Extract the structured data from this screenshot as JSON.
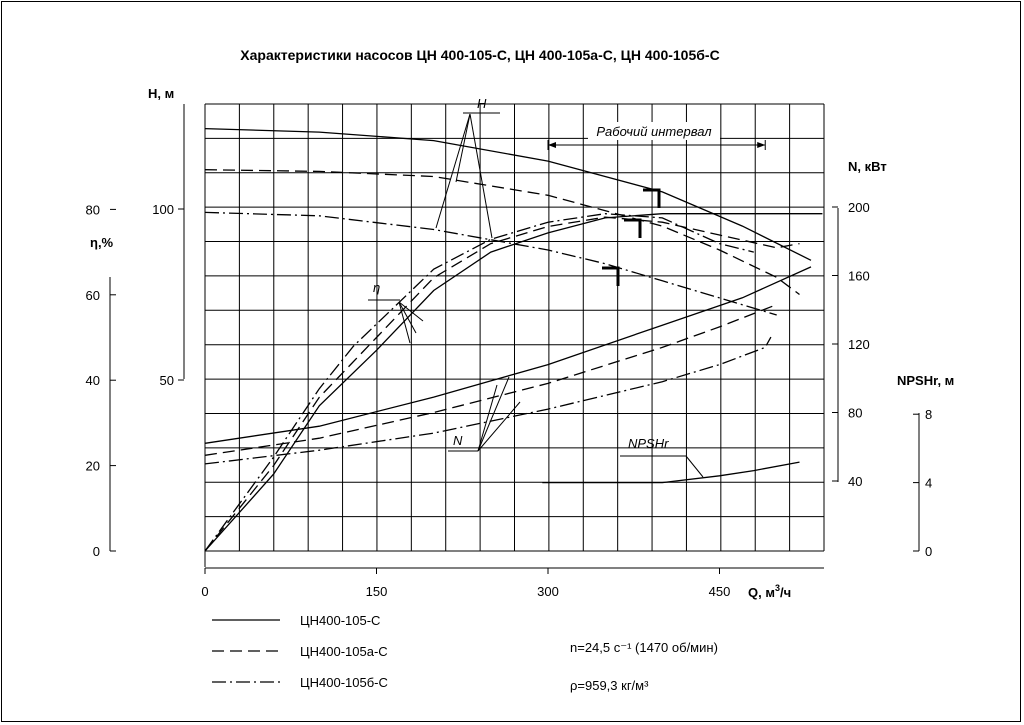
{
  "chart_data": {
    "type": "line",
    "title": "Характеристики насосов ЦН 400-105-С, ЦН 400-105а-С, ЦН 400-105б-С",
    "xlabel": "Q, м³/ч",
    "x_ticks": [
      "0",
      "150",
      "300",
      "450"
    ],
    "xlim": [
      0,
      540
    ],
    "axes": {
      "H": {
        "label": "H, м",
        "ticks": [
          "50",
          "100"
        ],
        "range": [
          0,
          130
        ]
      },
      "eta": {
        "label": "η,%",
        "ticks": [
          "0",
          "20",
          "40",
          "60",
          "80"
        ],
        "range": [
          0,
          80
        ]
      },
      "N": {
        "label": "N, кВт",
        "ticks": [
          "40",
          "80",
          "120",
          "160",
          "200"
        ],
        "range": [
          0,
          200
        ]
      },
      "NPSH": {
        "label": "NPSHr, м",
        "ticks": [
          "0",
          "4",
          "8"
        ],
        "range": [
          0,
          8
        ]
      }
    },
    "curve_labels": {
      "H": "H",
      "eta": "η",
      "N": "N",
      "NPSH": "NPSHr"
    },
    "operating_range": {
      "label": "Рабочий интервал",
      "q_range": [
        300,
        490
      ]
    },
    "series": [
      {
        "name": "ЦН400-105-С",
        "style": "solid",
        "H": [
          [
            0,
            123.5
          ],
          [
            100,
            122.5
          ],
          [
            200,
            120
          ],
          [
            300,
            114
          ],
          [
            400,
            105
          ],
          [
            470,
            95
          ],
          [
            530,
            85
          ]
        ],
        "eta": [
          [
            0,
            0
          ],
          [
            30,
            9
          ],
          [
            60,
            18
          ],
          [
            100,
            34
          ],
          [
            150,
            47
          ],
          [
            200,
            61
          ],
          [
            250,
            70
          ],
          [
            300,
            74.5
          ],
          [
            350,
            78
          ],
          [
            400,
            79
          ],
          [
            450,
            79
          ],
          [
            500,
            79
          ],
          [
            540,
            79
          ]
        ],
        "N": [
          [
            0,
            62
          ],
          [
            100,
            72
          ],
          [
            200,
            89
          ],
          [
            300,
            108
          ],
          [
            400,
            131
          ],
          [
            470,
            147
          ],
          [
            530,
            165
          ]
        ],
        "NPSH": [
          [
            295,
            4
          ],
          [
            400,
            4
          ],
          [
            450,
            4.4
          ],
          [
            480,
            4.7
          ],
          [
            520,
            5.2
          ]
        ]
      },
      {
        "name": "ЦН400-105а-С",
        "style": "dashed",
        "H": [
          [
            0,
            111.5
          ],
          [
            100,
            111
          ],
          [
            200,
            109.5
          ],
          [
            300,
            104
          ],
          [
            400,
            95
          ],
          [
            450,
            88
          ],
          [
            500,
            80
          ],
          [
            520,
            75
          ]
        ],
        "eta": [
          [
            0,
            0
          ],
          [
            30,
            10
          ],
          [
            60,
            20
          ],
          [
            100,
            36
          ],
          [
            150,
            50
          ],
          [
            200,
            64
          ],
          [
            250,
            72
          ],
          [
            300,
            76
          ],
          [
            350,
            78.2
          ],
          [
            400,
            77
          ],
          [
            450,
            74
          ],
          [
            500,
            71
          ],
          [
            520,
            72
          ]
        ],
        "N": [
          [
            0,
            55
          ],
          [
            100,
            65
          ],
          [
            200,
            80
          ],
          [
            300,
            97
          ],
          [
            400,
            118
          ],
          [
            450,
            130
          ],
          [
            500,
            143
          ]
        ],
        "NPSH": []
      },
      {
        "name": "ЦН400-105б-С",
        "style": "dash-dot",
        "H": [
          [
            0,
            99
          ],
          [
            100,
            98
          ],
          [
            200,
            94
          ],
          [
            300,
            88
          ],
          [
            350,
            84
          ],
          [
            400,
            79
          ],
          [
            450,
            74
          ],
          [
            500,
            69
          ]
        ],
        "eta": [
          [
            0,
            0
          ],
          [
            30,
            11
          ],
          [
            60,
            22
          ],
          [
            100,
            38
          ],
          [
            130,
            48
          ],
          [
            200,
            66
          ],
          [
            250,
            73
          ],
          [
            300,
            77
          ],
          [
            350,
            79
          ],
          [
            400,
            78
          ],
          [
            450,
            72
          ],
          [
            480,
            70
          ]
        ],
        "N": [
          [
            0,
            50
          ],
          [
            100,
            58
          ],
          [
            200,
            68
          ],
          [
            300,
            82
          ],
          [
            400,
            98
          ],
          [
            450,
            108
          ],
          [
            490,
            118
          ],
          [
            495,
            124
          ]
        ],
        "NPSH": []
      }
    ],
    "legend": [
      {
        "name": "ЦН400-105-С",
        "style": "solid"
      },
      {
        "name": "ЦН400-105а-С",
        "style": "dashed"
      },
      {
        "name": "ЦН400-105б-С",
        "style": "dash-dot"
      }
    ],
    "notes": [
      "n=24,5 с⁻¹ (1470 об/мин)",
      "ρ=959,3 кг/м³"
    ]
  }
}
